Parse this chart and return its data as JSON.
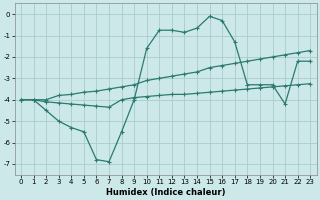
{
  "xlabel": "Humidex (Indice chaleur)",
  "background_color": "#cce8e8",
  "grid_color": "#aacccc",
  "line_color": "#2a7a70",
  "xlim": [
    -0.5,
    23.5
  ],
  "ylim": [
    -7.5,
    0.5
  ],
  "xticks": [
    0,
    1,
    2,
    3,
    4,
    5,
    6,
    7,
    8,
    9,
    10,
    11,
    12,
    13,
    14,
    15,
    16,
    17,
    18,
    19,
    20,
    21,
    22,
    23
  ],
  "yticks": [
    0,
    -1,
    -2,
    -3,
    -4,
    -5,
    -6,
    -7
  ],
  "line1_x": [
    0,
    1,
    2,
    3,
    4,
    5,
    6,
    7,
    8,
    9,
    10,
    11,
    12,
    13,
    14,
    15,
    16,
    17,
    18,
    19,
    20,
    21,
    22,
    23
  ],
  "line1_y": [
    -4.0,
    -4.0,
    -4.1,
    -4.15,
    -4.2,
    -4.25,
    -4.3,
    -4.35,
    -4.0,
    -3.9,
    -3.85,
    -3.8,
    -3.75,
    -3.75,
    -3.7,
    -3.65,
    -3.6,
    -3.55,
    -3.5,
    -3.45,
    -3.4,
    -3.35,
    -3.3,
    -3.25
  ],
  "line2_x": [
    0,
    1,
    2,
    3,
    4,
    5,
    6,
    7,
    8,
    9,
    10,
    11,
    12,
    13,
    14,
    15,
    16,
    17,
    18,
    19,
    20,
    21,
    22,
    23
  ],
  "line2_y": [
    -4.0,
    -4.0,
    -4.5,
    -5.0,
    -5.3,
    -5.5,
    -6.8,
    -6.9,
    -5.5,
    -4.0,
    -1.6,
    -0.75,
    -0.75,
    -0.85,
    -0.65,
    -0.1,
    -0.3,
    -1.3,
    -3.3,
    -3.3,
    -3.3,
    -4.2,
    -2.2,
    -2.2
  ],
  "line3_x": [
    0,
    1,
    2,
    3,
    4,
    5,
    6,
    7,
    8,
    9,
    10,
    11,
    12,
    13,
    14,
    15,
    16,
    17,
    18,
    19,
    20,
    21,
    22,
    23
  ],
  "line3_y": [
    -4.0,
    -4.0,
    -4.0,
    -3.8,
    -3.75,
    -3.65,
    -3.6,
    -3.5,
    -3.4,
    -3.3,
    -3.1,
    -3.0,
    -2.9,
    -2.8,
    -2.7,
    -2.5,
    -2.4,
    -2.3,
    -2.2,
    -2.1,
    -2.0,
    -1.9,
    -1.8,
    -1.7
  ]
}
